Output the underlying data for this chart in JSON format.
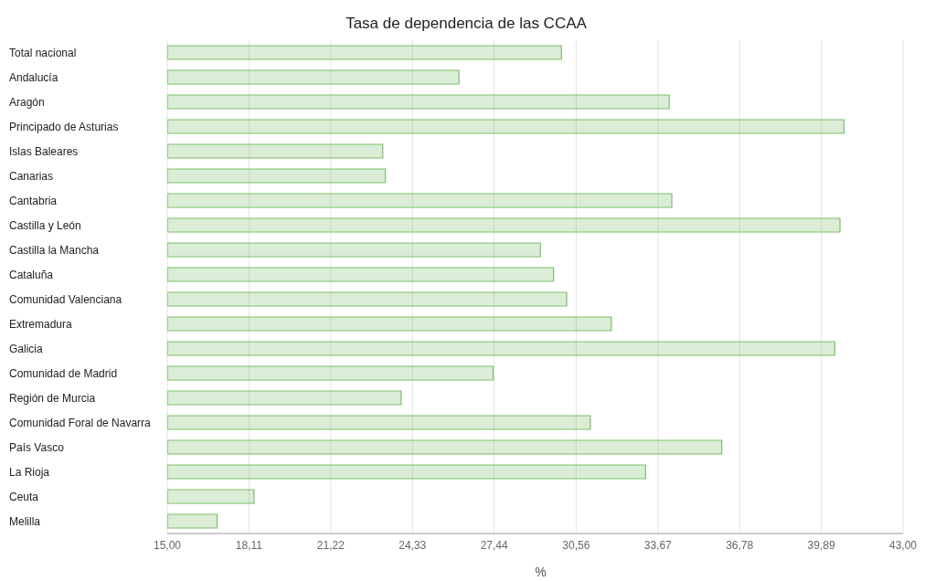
{
  "chart_data": {
    "type": "bar",
    "orientation": "horizontal",
    "title": "Tasa de dependencia de las CCAA",
    "xlabel": "%",
    "categories": [
      "Total nacional",
      "Andalucía",
      "Aragón",
      "Principado de Asturias",
      "Islas Baleares",
      "Canarias",
      "Cantabria",
      "Castilla y León",
      "Castilla la Mancha",
      "Cataluña",
      "Comunidad Valenciana",
      "Extremadura",
      "Galicia",
      "Comunidad de Madrid",
      "Región de Murcia",
      "Comunidad Foral de Navarra",
      "País Vasco",
      "La Rioja",
      "Ceuta",
      "Melilla"
    ],
    "values": [
      30.0,
      26.1,
      34.1,
      40.75,
      23.2,
      23.3,
      34.2,
      40.6,
      29.2,
      29.7,
      30.2,
      31.9,
      40.4,
      27.4,
      23.9,
      31.1,
      36.1,
      33.2,
      18.3,
      16.9
    ],
    "color": "#7cbf6a",
    "xlim": [
      15,
      43
    ],
    "xticks": [
      {
        "value": 15,
        "label": "15,00"
      },
      {
        "value": 18.11,
        "label": "18,11"
      },
      {
        "value": 21.22,
        "label": "21,22"
      },
      {
        "value": 24.33,
        "label": "24,33"
      },
      {
        "value": 27.44,
        "label": "27,44"
      },
      {
        "value": 30.56,
        "label": "30,56"
      },
      {
        "value": 33.67,
        "label": "33,67"
      },
      {
        "value": 36.78,
        "label": "36,78"
      },
      {
        "value": 39.89,
        "label": "39,89"
      },
      {
        "value": 43,
        "label": "43,00"
      }
    ],
    "grid": "x"
  }
}
